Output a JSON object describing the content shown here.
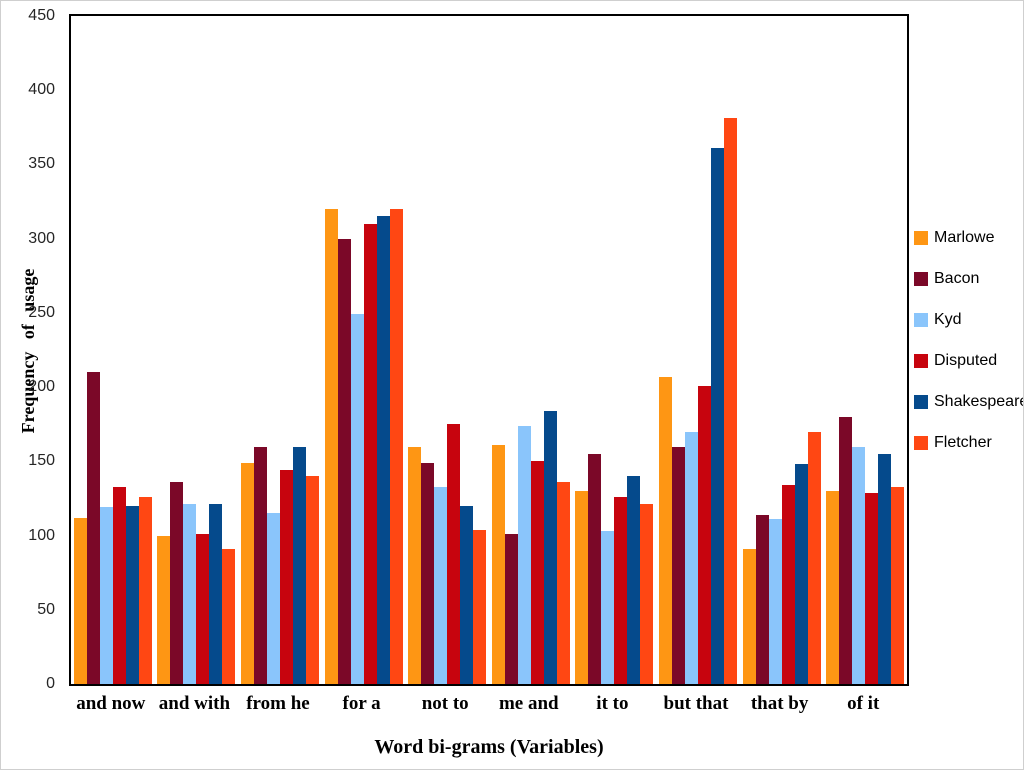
{
  "chart_data": {
    "type": "bar",
    "title": "",
    "xlabel": "Word bi-grams (Variables)",
    "ylabel": "Frequency of usage",
    "ylim": [
      0,
      450
    ],
    "ytick_step": 50,
    "grid": false,
    "legend_position": "right",
    "plot_border_color": "#000000",
    "tick_label_color": "#262626",
    "categories": [
      "and now",
      "and with",
      "from he",
      "for a",
      "not to",
      "me and",
      "it to",
      "but that",
      "that by",
      "of it"
    ],
    "series": [
      {
        "name": "Marlowe",
        "color": "#FE9614",
        "values": [
          112,
          100,
          149,
          320,
          160,
          161,
          130,
          207,
          91,
          130
        ]
      },
      {
        "name": "Bacon",
        "color": "#7B0828",
        "values": [
          210,
          136,
          160,
          300,
          149,
          101,
          155,
          160,
          114,
          180
        ]
      },
      {
        "name": "Kyd",
        "color": "#8AC5FB",
        "values": [
          119,
          121,
          115,
          249,
          133,
          174,
          103,
          170,
          111,
          160
        ]
      },
      {
        "name": "Disputed",
        "color": "#C7040E",
        "values": [
          133,
          101,
          144,
          310,
          175,
          150,
          126,
          201,
          134,
          129
        ]
      },
      {
        "name": "Shakespeare",
        "color": "#054A8C",
        "values": [
          120,
          121,
          160,
          315,
          120,
          184,
          140,
          361,
          148,
          155
        ]
      },
      {
        "name": "Fletcher",
        "color": "#FF4713",
        "values": [
          126,
          91,
          140,
          320,
          104,
          136,
          121,
          381,
          170,
          133
        ]
      }
    ]
  }
}
